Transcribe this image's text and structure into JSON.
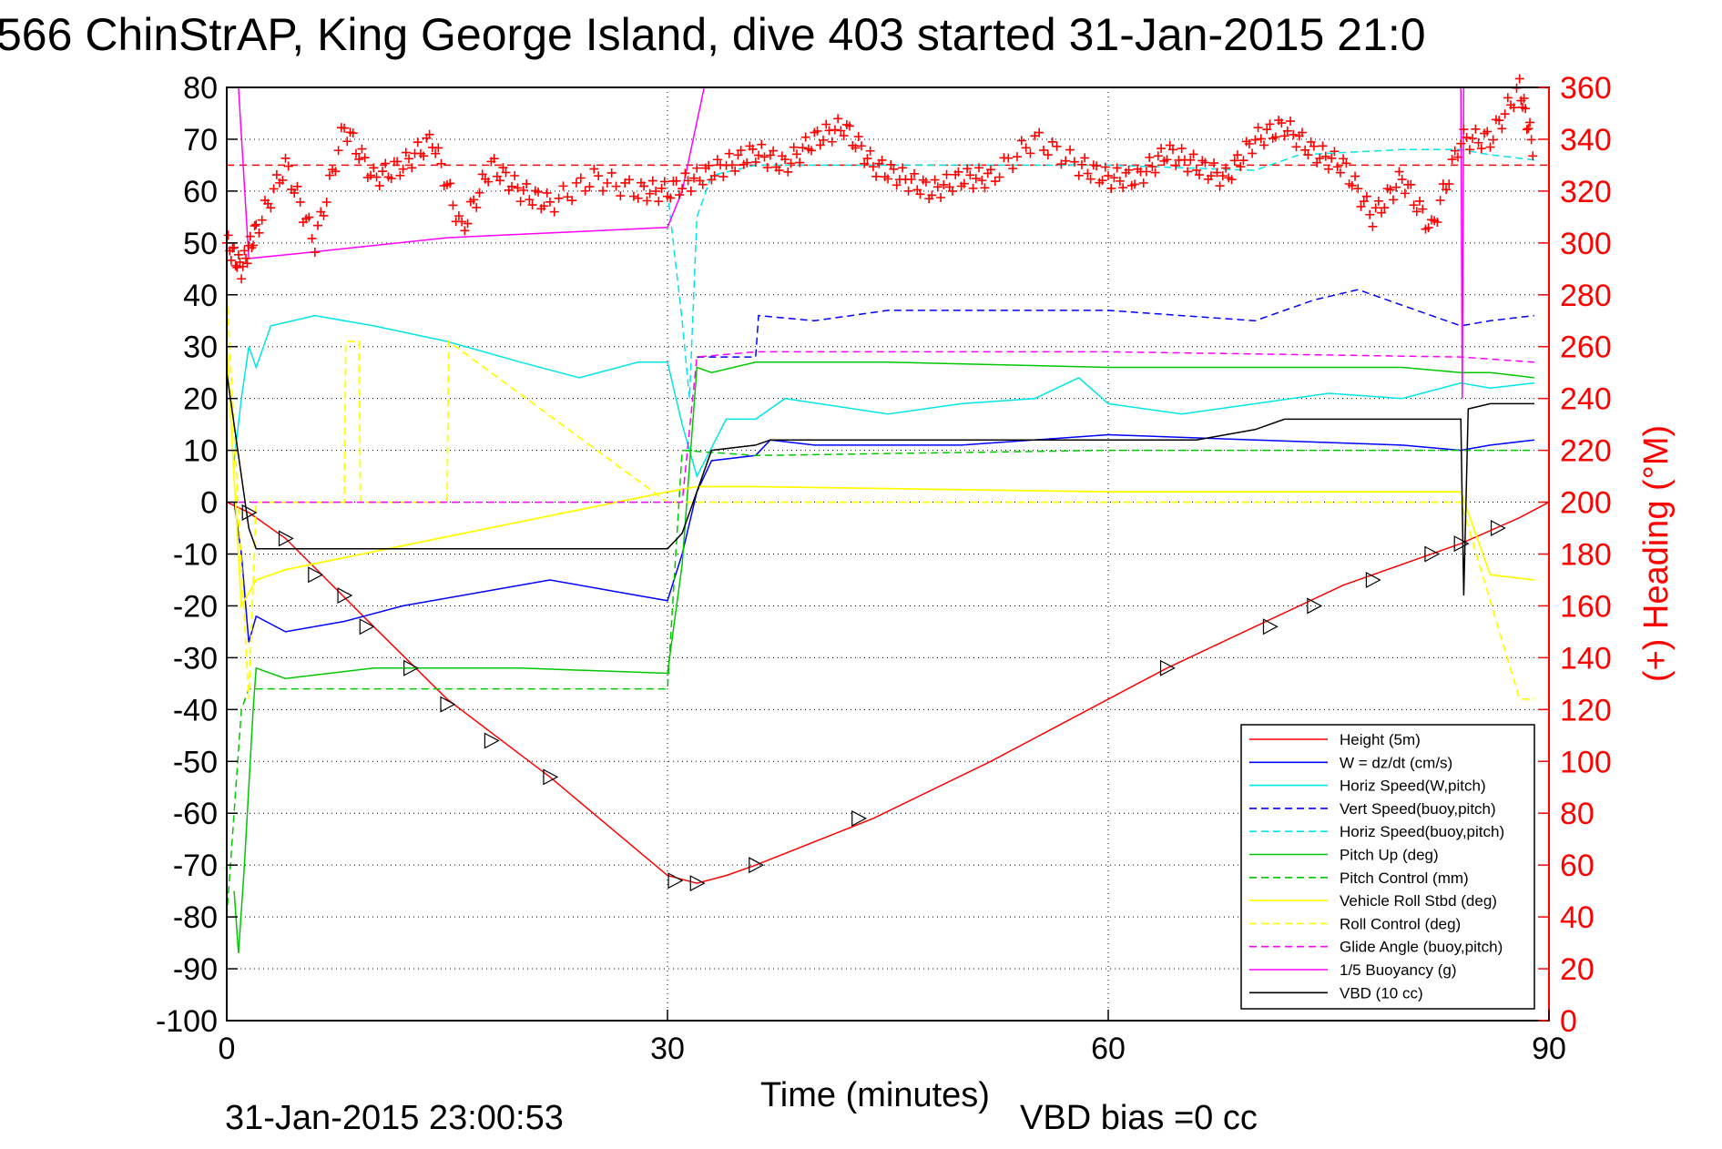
{
  "chart_data": {
    "type": "line",
    "title": "566 ChinStrAP, King George Island, dive 403 started 31-Jan-2015 21:0",
    "xlabel": "Time (minutes)",
    "ylabel_right": "(+) Heading (°M)",
    "footer_left": "31-Jan-2015 23:00:53",
    "footer_right": "VBD bias =0 cc",
    "xlim": [
      0,
      90
    ],
    "ylim_left": [
      -100,
      80
    ],
    "ylim_right": [
      0,
      360
    ],
    "xticks": [
      "0",
      "30",
      "60",
      "90"
    ],
    "yticks_left": [
      "80",
      "70",
      "60",
      "50",
      "40",
      "30",
      "20",
      "10",
      "0",
      "-10",
      "-20",
      "-30",
      "-40",
      "-50",
      "-60",
      "-70",
      "-80",
      "-90",
      "-100"
    ],
    "yticks_right": [
      "360",
      "340",
      "320",
      "300",
      "280",
      "260",
      "240",
      "220",
      "200",
      "180",
      "160",
      "140",
      "120",
      "100",
      "80",
      "60",
      "40",
      "20",
      "0"
    ],
    "grid": true,
    "legend_position": "bottom-right",
    "heading_reference": 330,
    "series": [
      {
        "name": "Height (5m)",
        "color": "#ff0000",
        "style": "solid",
        "x": [
          0,
          1.5,
          4,
          10,
          15,
          22,
          30,
          32,
          34,
          36,
          44,
          52,
          60,
          64,
          70,
          76,
          84,
          88,
          90
        ],
        "y": [
          0,
          -2,
          -7,
          -24,
          -38,
          -53,
          -72,
          -73.5,
          -72,
          -70,
          -61,
          -50,
          -38,
          -32,
          -24,
          -16,
          -8,
          -3,
          0
        ]
      },
      {
        "name": "W = dz/dt (cm/s)",
        "color": "#0000ff",
        "style": "solid",
        "x": [
          0.5,
          1,
          1.5,
          2,
          4,
          8,
          12,
          18,
          22,
          28,
          30,
          31,
          32,
          33,
          36,
          37,
          40,
          50,
          60,
          70,
          80,
          84,
          86,
          89
        ],
        "y": [
          0,
          -10,
          -27,
          -22,
          -25,
          -23,
          -20,
          -17,
          -15,
          -18,
          -19,
          -10,
          2,
          8,
          9,
          12,
          11,
          11,
          13,
          12,
          11,
          10,
          11,
          12
        ]
      },
      {
        "name": "Horiz Speed(W,pitch)",
        "color": "#00e5e5",
        "style": "solid",
        "x": [
          0.5,
          1,
          1.5,
          2,
          3,
          6,
          10,
          15,
          20,
          24,
          28,
          30,
          31,
          32,
          34,
          36,
          38,
          45,
          50,
          55,
          58,
          60,
          65,
          70,
          75,
          80,
          84,
          86,
          89
        ],
        "y": [
          8,
          20,
          30,
          26,
          34,
          36,
          34,
          31,
          27,
          24,
          27,
          27,
          15,
          5,
          16,
          16,
          20,
          17,
          19,
          20,
          24,
          19,
          17,
          19,
          21,
          20,
          23,
          22,
          23
        ]
      },
      {
        "name": "Vert Speed(buoy,pitch)",
        "color": "#0000ff",
        "style": "dashed",
        "x": [
          32,
          36,
          36.2,
          40,
          45,
          60,
          70,
          74,
          77,
          82,
          84,
          86,
          89
        ],
        "y": [
          28,
          28,
          36,
          35,
          37,
          37,
          35,
          39,
          41,
          36,
          34,
          35,
          36
        ]
      },
      {
        "name": "Horiz Speed(buoy,pitch)",
        "color": "#00e5e5",
        "style": "dashed",
        "x": [
          30,
          31,
          31.5,
          32,
          33,
          36,
          45,
          60,
          70,
          73,
          80,
          84,
          86,
          89
        ],
        "y": [
          60,
          35,
          20,
          55,
          63,
          65,
          65,
          65,
          64,
          67,
          68,
          68,
          67,
          66
        ]
      },
      {
        "name": "Pitch Up (deg)",
        "color": "#00c800",
        "style": "solid",
        "x": [
          0.5,
          0.8,
          1.2,
          1.8,
          2,
          4,
          10,
          20,
          30,
          31,
          32,
          33,
          36,
          45,
          60,
          70,
          80,
          84,
          86,
          89
        ],
        "y": [
          -75,
          -87,
          -70,
          -40,
          -32,
          -34,
          -32,
          -32,
          -33,
          -12,
          26,
          25,
          27,
          27,
          26,
          26,
          26,
          25,
          25,
          24
        ]
      },
      {
        "name": "Pitch Control (mm)",
        "color": "#00c800",
        "style": "dashed",
        "x": [
          0,
          1,
          1.5,
          2,
          30,
          31,
          36,
          60,
          84,
          89
        ],
        "y": [
          -80,
          -40,
          -36,
          -36,
          -36,
          10,
          9,
          10,
          10,
          10
        ]
      },
      {
        "name": "Vehicle Roll Stbd (deg)",
        "color": "#ffff00",
        "style": "solid",
        "x": [
          0,
          1,
          2,
          4,
          30,
          32,
          36,
          60,
          84,
          86,
          89
        ],
        "y": [
          30,
          -20,
          -15,
          -13,
          2,
          3,
          3,
          2,
          2,
          -14,
          -15
        ]
      },
      {
        "name": "Roll Control (deg)",
        "color": "#ffff00",
        "style": "dashed",
        "x": [
          0,
          1.5,
          2,
          8,
          8.1,
          9,
          9.1,
          15,
          15.1,
          30,
          32,
          60,
          84,
          88,
          89
        ],
        "y": [
          40,
          -38,
          0,
          0,
          31,
          31,
          0,
          0,
          31,
          0,
          0,
          0,
          0,
          -38,
          -38
        ]
      },
      {
        "name": "Glide Angle (buoy,pitch)",
        "color": "#ff00ff",
        "style": "dashed",
        "x": [
          0,
          30,
          31,
          32,
          36,
          60,
          84,
          89
        ],
        "y": [
          0,
          0,
          0,
          28,
          29,
          29,
          28,
          27
        ]
      },
      {
        "name": "1/5 Buoyancy (g)",
        "color": "#ff00ff",
        "style": "solid",
        "x": [
          0.8,
          1.5,
          5,
          15,
          30,
          31,
          32.5,
          84,
          84.1,
          84.2
        ],
        "y": [
          80,
          47,
          48,
          51,
          53,
          60,
          80,
          80,
          20,
          80
        ]
      },
      {
        "name": "VBD (10 cc)",
        "color": "#000000",
        "style": "solid",
        "x": [
          0,
          1.5,
          2,
          30,
          31,
          33,
          36,
          37,
          60,
          66,
          70,
          72,
          84,
          84.2,
          84.5,
          86,
          89
        ],
        "y": [
          25,
          -5,
          -9,
          -9,
          -6,
          10,
          11,
          12,
          12,
          12,
          14,
          16,
          16,
          -18,
          18,
          19,
          19
        ]
      },
      {
        "name": "Heading",
        "color": "#ff0000",
        "style": "markers",
        "axis": "right",
        "x": [
          0,
          1,
          2,
          4,
          6,
          8,
          10,
          12,
          14,
          16,
          18,
          20,
          22,
          25,
          28,
          30,
          32,
          34,
          36,
          38,
          40,
          42,
          44,
          46,
          48,
          50,
          52,
          55,
          58,
          60,
          62,
          64,
          66,
          68,
          70,
          72,
          74,
          76,
          78,
          80,
          82,
          84,
          86,
          88,
          89
        ],
        "y": [
          300,
          290,
          305,
          330,
          300,
          345,
          325,
          330,
          340,
          305,
          330,
          320,
          315,
          325,
          320,
          320,
          325,
          330,
          335,
          330,
          340,
          345,
          330,
          325,
          320,
          325,
          325,
          340,
          330,
          325,
          325,
          335,
          330,
          325,
          340,
          345,
          335,
          330,
          310,
          325,
          305,
          340,
          340,
          360,
          335
        ]
      }
    ],
    "legend": [
      {
        "label": "Height (5m)",
        "color": "#ff0000",
        "style": "solid"
      },
      {
        "label": "W = dz/dt (cm/s)",
        "color": "#0000ff",
        "style": "solid"
      },
      {
        "label": "Horiz Speed(W,pitch)",
        "color": "#00e5e5",
        "style": "solid"
      },
      {
        "label": "Vert Speed(buoy,pitch)",
        "color": "#0000ff",
        "style": "dashed"
      },
      {
        "label": "Horiz Speed(buoy,pitch)",
        "color": "#00e5e5",
        "style": "dashed"
      },
      {
        "label": "Pitch Up (deg)",
        "color": "#00c800",
        "style": "solid"
      },
      {
        "label": "Pitch Control (mm)",
        "color": "#00c800",
        "style": "dashed"
      },
      {
        "label": "Vehicle Roll Stbd (deg)",
        "color": "#ffff00",
        "style": "solid"
      },
      {
        "label": "Roll Control (deg)",
        "color": "#ffff00",
        "style": "dashed"
      },
      {
        "label": "Glide Angle (buoy,pitch)",
        "color": "#ff00ff",
        "style": "dashed"
      },
      {
        "label": "1/5 Buoyancy (g)",
        "color": "#ff00ff",
        "style": "solid"
      },
      {
        "label": "VBD (10 cc)",
        "color": "#000000",
        "style": "solid"
      }
    ],
    "markers": {
      "descent_x": [
        1.5,
        4,
        6,
        8,
        9.5,
        12.5,
        15,
        18,
        22,
        30.5,
        32,
        36,
        43,
        64,
        71,
        74,
        78,
        82,
        84,
        86.5
      ],
      "descent_y": [
        -2,
        -7,
        -14,
        -18,
        -24,
        -32,
        -39,
        -46,
        -53,
        -73,
        -73.5,
        -70,
        -61,
        -32,
        -24,
        -20,
        -15,
        -10,
        -8,
        -5
      ]
    }
  }
}
